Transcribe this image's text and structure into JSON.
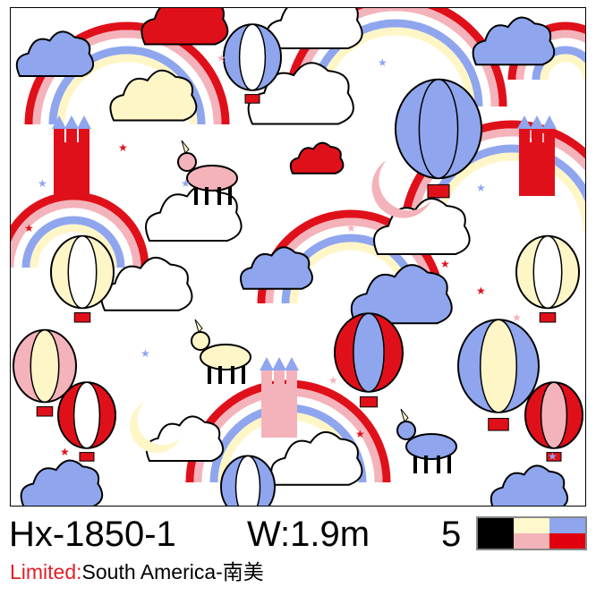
{
  "product": {
    "code": "Hx-1850-1",
    "width": "W:1.9m",
    "color_count": "5",
    "limited_label": "Limited:",
    "limited_region": "South America-南美"
  },
  "swatch_colors": [
    "#fff8cc",
    "#8fa6ee",
    "#000000",
    "#f2b4b8",
    "#e0000f",
    "#000000"
  ],
  "pattern": {
    "motifs": [
      "rainbow",
      "cloud",
      "hot-air-balloon",
      "castle",
      "unicorn",
      "star",
      "moon"
    ],
    "colors": {
      "red": "#e0101a",
      "pink": "#f4b3bb",
      "blue": "#8fa6ee",
      "yellow": "#fff6c8",
      "outline": "#000000"
    }
  }
}
